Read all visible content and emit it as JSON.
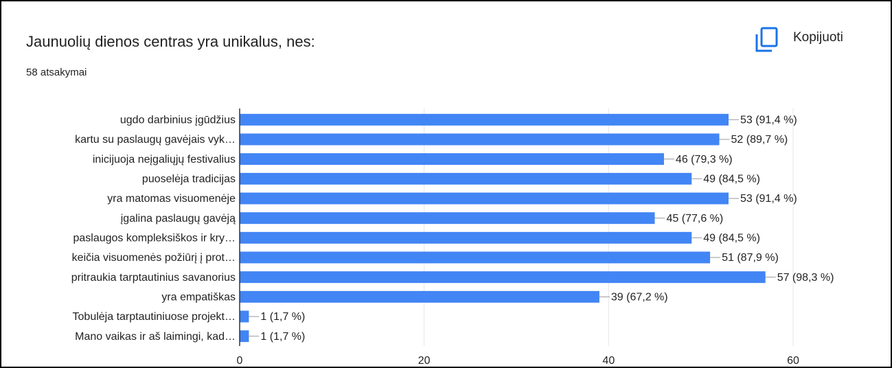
{
  "copy_button": "Kopijuoti",
  "chart_data": {
    "type": "bar",
    "orientation": "horizontal",
    "title": "Jaunuolių dienos centras yra unikalus, nes:",
    "subtitle": "58 atsakymai",
    "categories": [
      "ugdo darbinius įgūdžius",
      "kartu su paslaugų gavėjais vyk…",
      "inicijuoja neįgaliųjų festivalius",
      "puoselėja tradicijas",
      "yra matomas visuomenėje",
      "įgalina paslaugų gavėją",
      "paslaugos kompleksiškos ir kry…",
      "keičia visuomenės požiūrį į prot…",
      "pritraukia tarptautinius savanorius",
      "yra empatiškas",
      "Tobulėja tarptautiniuose projekt…",
      "Mano vaikas ir aš laimingi, kad…"
    ],
    "values": [
      53,
      52,
      46,
      49,
      53,
      45,
      49,
      51,
      57,
      39,
      1,
      1
    ],
    "value_labels": [
      "53 (91,4 %)",
      "52 (89,7 %)",
      "46 (79,3 %)",
      "49 (84,5 %)",
      "53 (91,4 %)",
      "45 (77,6 %)",
      "49 (84,5 %)",
      "51 (87,9 %)",
      "57 (98,3 %)",
      "39 (67,2 %)",
      "1 (1,7 %)",
      "1 (1,7 %)"
    ],
    "color": "#4285f4",
    "xlim": [
      0,
      60
    ],
    "xticks": [
      0,
      20,
      40,
      60
    ],
    "grid": true
  }
}
